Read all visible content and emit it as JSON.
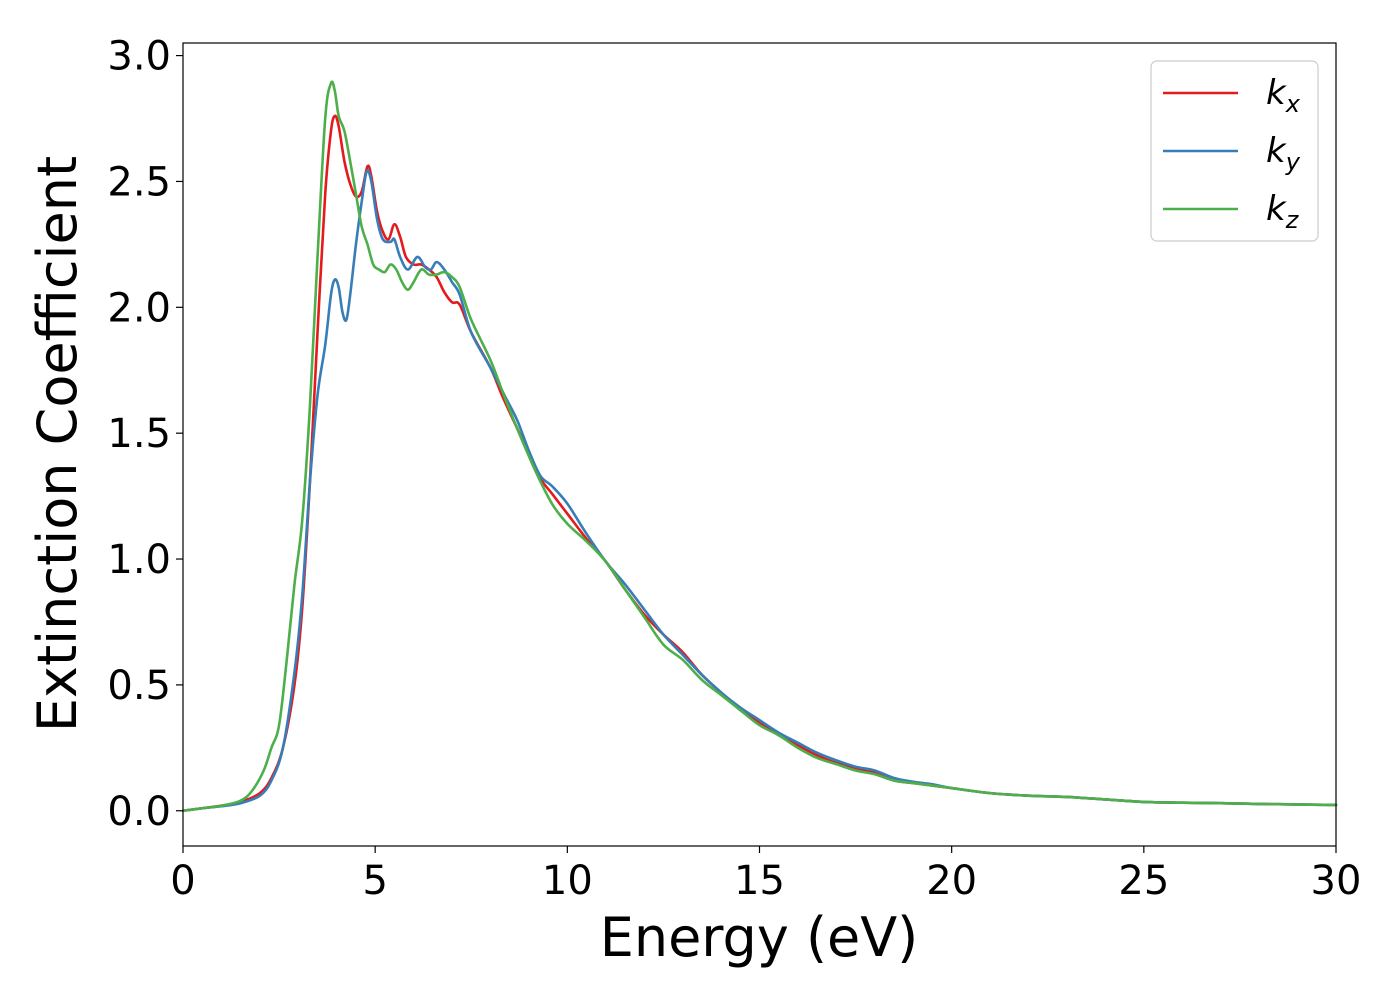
{
  "chart_data": {
    "type": "line",
    "title": "",
    "xlabel": "Energy (eV)",
    "ylabel": "Extinction Coefficient",
    "xlim": [
      0,
      30
    ],
    "ylim": [
      -0.14,
      3.05
    ],
    "xticks": [
      0,
      5,
      10,
      15,
      20,
      25,
      30
    ],
    "xtick_labels": [
      "0",
      "5",
      "10",
      "15",
      "20",
      "25",
      "30"
    ],
    "yticks": [
      0.0,
      0.5,
      1.0,
      1.5,
      2.0,
      2.5,
      3.0
    ],
    "ytick_labels": [
      "0.0",
      "0.5",
      "1.0",
      "1.5",
      "2.0",
      "2.5",
      "3.0"
    ],
    "grid": false,
    "legend_position": "top-right",
    "series": [
      {
        "name": "k",
        "subscript": "x",
        "color": "#e41a1c",
        "points": [
          [
            0,
            0
          ],
          [
            0.5,
            0.01
          ],
          [
            1,
            0.02
          ],
          [
            1.5,
            0.035
          ],
          [
            2,
            0.07
          ],
          [
            2.3,
            0.13
          ],
          [
            2.6,
            0.25
          ],
          [
            2.9,
            0.5
          ],
          [
            3.1,
            0.8
          ],
          [
            3.3,
            1.3
          ],
          [
            3.5,
            1.9
          ],
          [
            3.7,
            2.45
          ],
          [
            3.85,
            2.7
          ],
          [
            3.95,
            2.76
          ],
          [
            4.05,
            2.72
          ],
          [
            4.2,
            2.58
          ],
          [
            4.35,
            2.49
          ],
          [
            4.5,
            2.44
          ],
          [
            4.65,
            2.46
          ],
          [
            4.8,
            2.56
          ],
          [
            4.9,
            2.52
          ],
          [
            5.05,
            2.38
          ],
          [
            5.2,
            2.3
          ],
          [
            5.35,
            2.27
          ],
          [
            5.5,
            2.33
          ],
          [
            5.65,
            2.28
          ],
          [
            5.8,
            2.2
          ],
          [
            6.0,
            2.17
          ],
          [
            6.2,
            2.17
          ],
          [
            6.4,
            2.15
          ],
          [
            6.6,
            2.12
          ],
          [
            6.8,
            2.06
          ],
          [
            7.0,
            2.02
          ],
          [
            7.2,
            2.01
          ],
          [
            7.5,
            1.9
          ],
          [
            8.0,
            1.76
          ],
          [
            8.3,
            1.65
          ],
          [
            8.6,
            1.55
          ],
          [
            9.0,
            1.42
          ],
          [
            9.3,
            1.32
          ],
          [
            9.6,
            1.26
          ],
          [
            10.0,
            1.18
          ],
          [
            10.5,
            1.08
          ],
          [
            11.0,
            0.99
          ],
          [
            11.5,
            0.88
          ],
          [
            12.0,
            0.78
          ],
          [
            12.5,
            0.7
          ],
          [
            13.0,
            0.63
          ],
          [
            13.5,
            0.54
          ],
          [
            14.0,
            0.47
          ],
          [
            14.5,
            0.4
          ],
          [
            15.0,
            0.35
          ],
          [
            15.5,
            0.3
          ],
          [
            16.0,
            0.26
          ],
          [
            16.5,
            0.22
          ],
          [
            17.0,
            0.19
          ],
          [
            17.5,
            0.17
          ],
          [
            18.0,
            0.15
          ],
          [
            18.5,
            0.12
          ],
          [
            19.0,
            0.11
          ],
          [
            19.5,
            0.1
          ],
          [
            20.0,
            0.09
          ],
          [
            21.0,
            0.07
          ],
          [
            22.0,
            0.06
          ],
          [
            23.0,
            0.055
          ],
          [
            24.0,
            0.045
          ],
          [
            25.0,
            0.035
          ],
          [
            26.0,
            0.032
          ],
          [
            27.0,
            0.03
          ],
          [
            28.0,
            0.027
          ],
          [
            29.0,
            0.025
          ],
          [
            30.0,
            0.023
          ]
        ]
      },
      {
        "name": "k",
        "subscript": "y",
        "color": "#377eb8",
        "points": [
          [
            0,
            0
          ],
          [
            0.5,
            0.01
          ],
          [
            1,
            0.018
          ],
          [
            1.5,
            0.03
          ],
          [
            2,
            0.06
          ],
          [
            2.3,
            0.12
          ],
          [
            2.6,
            0.25
          ],
          [
            2.9,
            0.55
          ],
          [
            3.1,
            0.85
          ],
          [
            3.3,
            1.3
          ],
          [
            3.5,
            1.65
          ],
          [
            3.7,
            1.85
          ],
          [
            3.85,
            2.05
          ],
          [
            3.95,
            2.11
          ],
          [
            4.05,
            2.08
          ],
          [
            4.15,
            1.98
          ],
          [
            4.25,
            1.95
          ],
          [
            4.35,
            2.05
          ],
          [
            4.5,
            2.25
          ],
          [
            4.65,
            2.42
          ],
          [
            4.78,
            2.54
          ],
          [
            4.9,
            2.5
          ],
          [
            5.05,
            2.35
          ],
          [
            5.2,
            2.27
          ],
          [
            5.4,
            2.26
          ],
          [
            5.5,
            2.27
          ],
          [
            5.65,
            2.2
          ],
          [
            5.85,
            2.15
          ],
          [
            6.1,
            2.2
          ],
          [
            6.3,
            2.16
          ],
          [
            6.45,
            2.15
          ],
          [
            6.6,
            2.18
          ],
          [
            6.8,
            2.15
          ],
          [
            7.0,
            2.1
          ],
          [
            7.2,
            2.05
          ],
          [
            7.5,
            1.9
          ],
          [
            8.0,
            1.76
          ],
          [
            8.4,
            1.64
          ],
          [
            8.7,
            1.55
          ],
          [
            9.0,
            1.43
          ],
          [
            9.3,
            1.33
          ],
          [
            9.6,
            1.29
          ],
          [
            10.0,
            1.22
          ],
          [
            10.5,
            1.1
          ],
          [
            11.0,
            0.99
          ],
          [
            11.5,
            0.9
          ],
          [
            12.0,
            0.8
          ],
          [
            12.5,
            0.7
          ],
          [
            13.0,
            0.62
          ],
          [
            13.5,
            0.54
          ],
          [
            14.0,
            0.47
          ],
          [
            14.5,
            0.41
          ],
          [
            15.0,
            0.36
          ],
          [
            15.5,
            0.31
          ],
          [
            16.0,
            0.27
          ],
          [
            16.5,
            0.23
          ],
          [
            17.0,
            0.2
          ],
          [
            17.5,
            0.175
          ],
          [
            18.0,
            0.16
          ],
          [
            18.5,
            0.13
          ],
          [
            19.0,
            0.115
          ],
          [
            19.5,
            0.105
          ],
          [
            20.0,
            0.09
          ],
          [
            21.0,
            0.07
          ],
          [
            22.0,
            0.06
          ],
          [
            23.0,
            0.055
          ],
          [
            24.0,
            0.045
          ],
          [
            25.0,
            0.035
          ],
          [
            26.0,
            0.032
          ],
          [
            27.0,
            0.03
          ],
          [
            28.0,
            0.027
          ],
          [
            29.0,
            0.025
          ],
          [
            30.0,
            0.023
          ]
        ]
      },
      {
        "name": "k",
        "subscript": "z",
        "color": "#4daf4a",
        "points": [
          [
            0,
            0
          ],
          [
            0.5,
            0.01
          ],
          [
            1,
            0.02
          ],
          [
            1.5,
            0.04
          ],
          [
            1.8,
            0.08
          ],
          [
            2.1,
            0.16
          ],
          [
            2.3,
            0.25
          ],
          [
            2.5,
            0.34
          ],
          [
            2.7,
            0.6
          ],
          [
            2.9,
            0.9
          ],
          [
            3.1,
            1.15
          ],
          [
            3.3,
            1.6
          ],
          [
            3.5,
            2.2
          ],
          [
            3.7,
            2.75
          ],
          [
            3.85,
            2.89
          ],
          [
            3.95,
            2.86
          ],
          [
            4.05,
            2.76
          ],
          [
            4.2,
            2.7
          ],
          [
            4.35,
            2.58
          ],
          [
            4.5,
            2.45
          ],
          [
            4.65,
            2.32
          ],
          [
            4.8,
            2.25
          ],
          [
            4.95,
            2.17
          ],
          [
            5.1,
            2.15
          ],
          [
            5.25,
            2.14
          ],
          [
            5.4,
            2.17
          ],
          [
            5.55,
            2.15
          ],
          [
            5.7,
            2.1
          ],
          [
            5.85,
            2.07
          ],
          [
            6.0,
            2.1
          ],
          [
            6.2,
            2.15
          ],
          [
            6.4,
            2.13
          ],
          [
            6.6,
            2.13
          ],
          [
            6.8,
            2.14
          ],
          [
            7.0,
            2.12
          ],
          [
            7.2,
            2.08
          ],
          [
            7.5,
            1.95
          ],
          [
            8.0,
            1.79
          ],
          [
            8.4,
            1.63
          ],
          [
            8.8,
            1.48
          ],
          [
            9.2,
            1.34
          ],
          [
            9.6,
            1.22
          ],
          [
            10.0,
            1.14
          ],
          [
            10.5,
            1.07
          ],
          [
            11.0,
            0.99
          ],
          [
            11.5,
            0.88
          ],
          [
            12.0,
            0.77
          ],
          [
            12.5,
            0.66
          ],
          [
            13.0,
            0.6
          ],
          [
            13.5,
            0.52
          ],
          [
            14.0,
            0.46
          ],
          [
            14.5,
            0.4
          ],
          [
            15.0,
            0.34
          ],
          [
            15.5,
            0.3
          ],
          [
            16.0,
            0.25
          ],
          [
            16.5,
            0.21
          ],
          [
            17.0,
            0.185
          ],
          [
            17.5,
            0.16
          ],
          [
            18.0,
            0.145
          ],
          [
            18.5,
            0.12
          ],
          [
            19.0,
            0.11
          ],
          [
            19.5,
            0.1
          ],
          [
            20.0,
            0.09
          ],
          [
            21.0,
            0.07
          ],
          [
            22.0,
            0.06
          ],
          [
            23.0,
            0.055
          ],
          [
            24.0,
            0.045
          ],
          [
            25.0,
            0.035
          ],
          [
            26.0,
            0.032
          ],
          [
            27.0,
            0.03
          ],
          [
            28.0,
            0.027
          ],
          [
            29.0,
            0.025
          ],
          [
            30.0,
            0.023
          ]
        ]
      }
    ]
  }
}
